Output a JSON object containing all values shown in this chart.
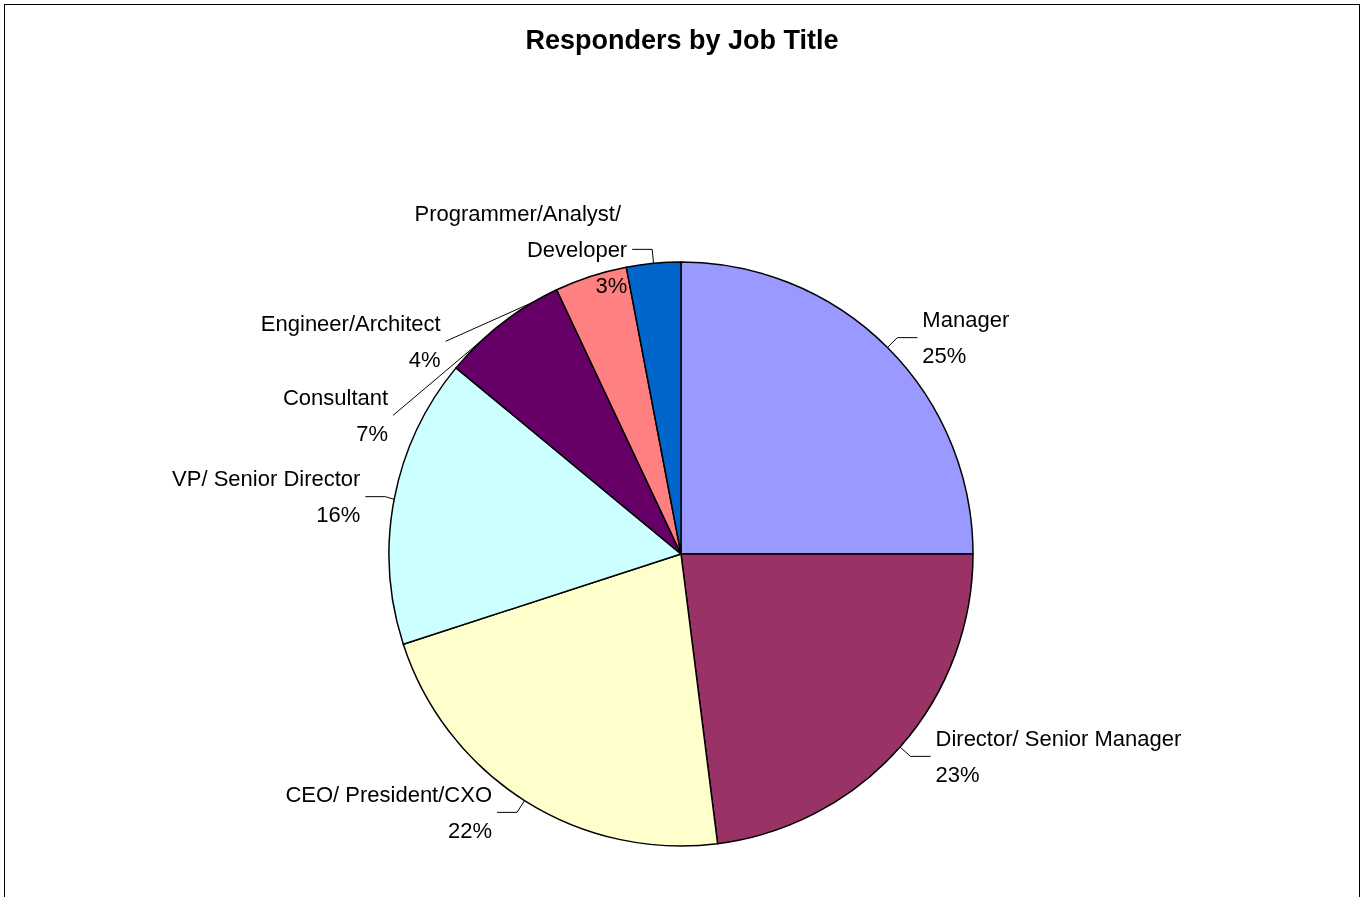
{
  "chart_data": {
    "type": "pie",
    "title": "Responders by Job Title",
    "categories": [
      "Manager",
      "Director/ Senior Manager",
      "CEO/ President/CXO",
      "VP/ Senior Director",
      "Consultant",
      "Engineer/Architect",
      "Programmer/Analyst/ Developer"
    ],
    "values": [
      25,
      23,
      22,
      16,
      7,
      4,
      3
    ],
    "colors": [
      "#9999ff",
      "#993366",
      "#ffffcc",
      "#ccffff",
      "#660066",
      "#ff8080",
      "#0066cc"
    ],
    "value_labels": [
      "25%",
      "23%",
      "22%",
      "16%",
      "7%",
      "4%",
      "3%"
    ],
    "legend": false
  }
}
